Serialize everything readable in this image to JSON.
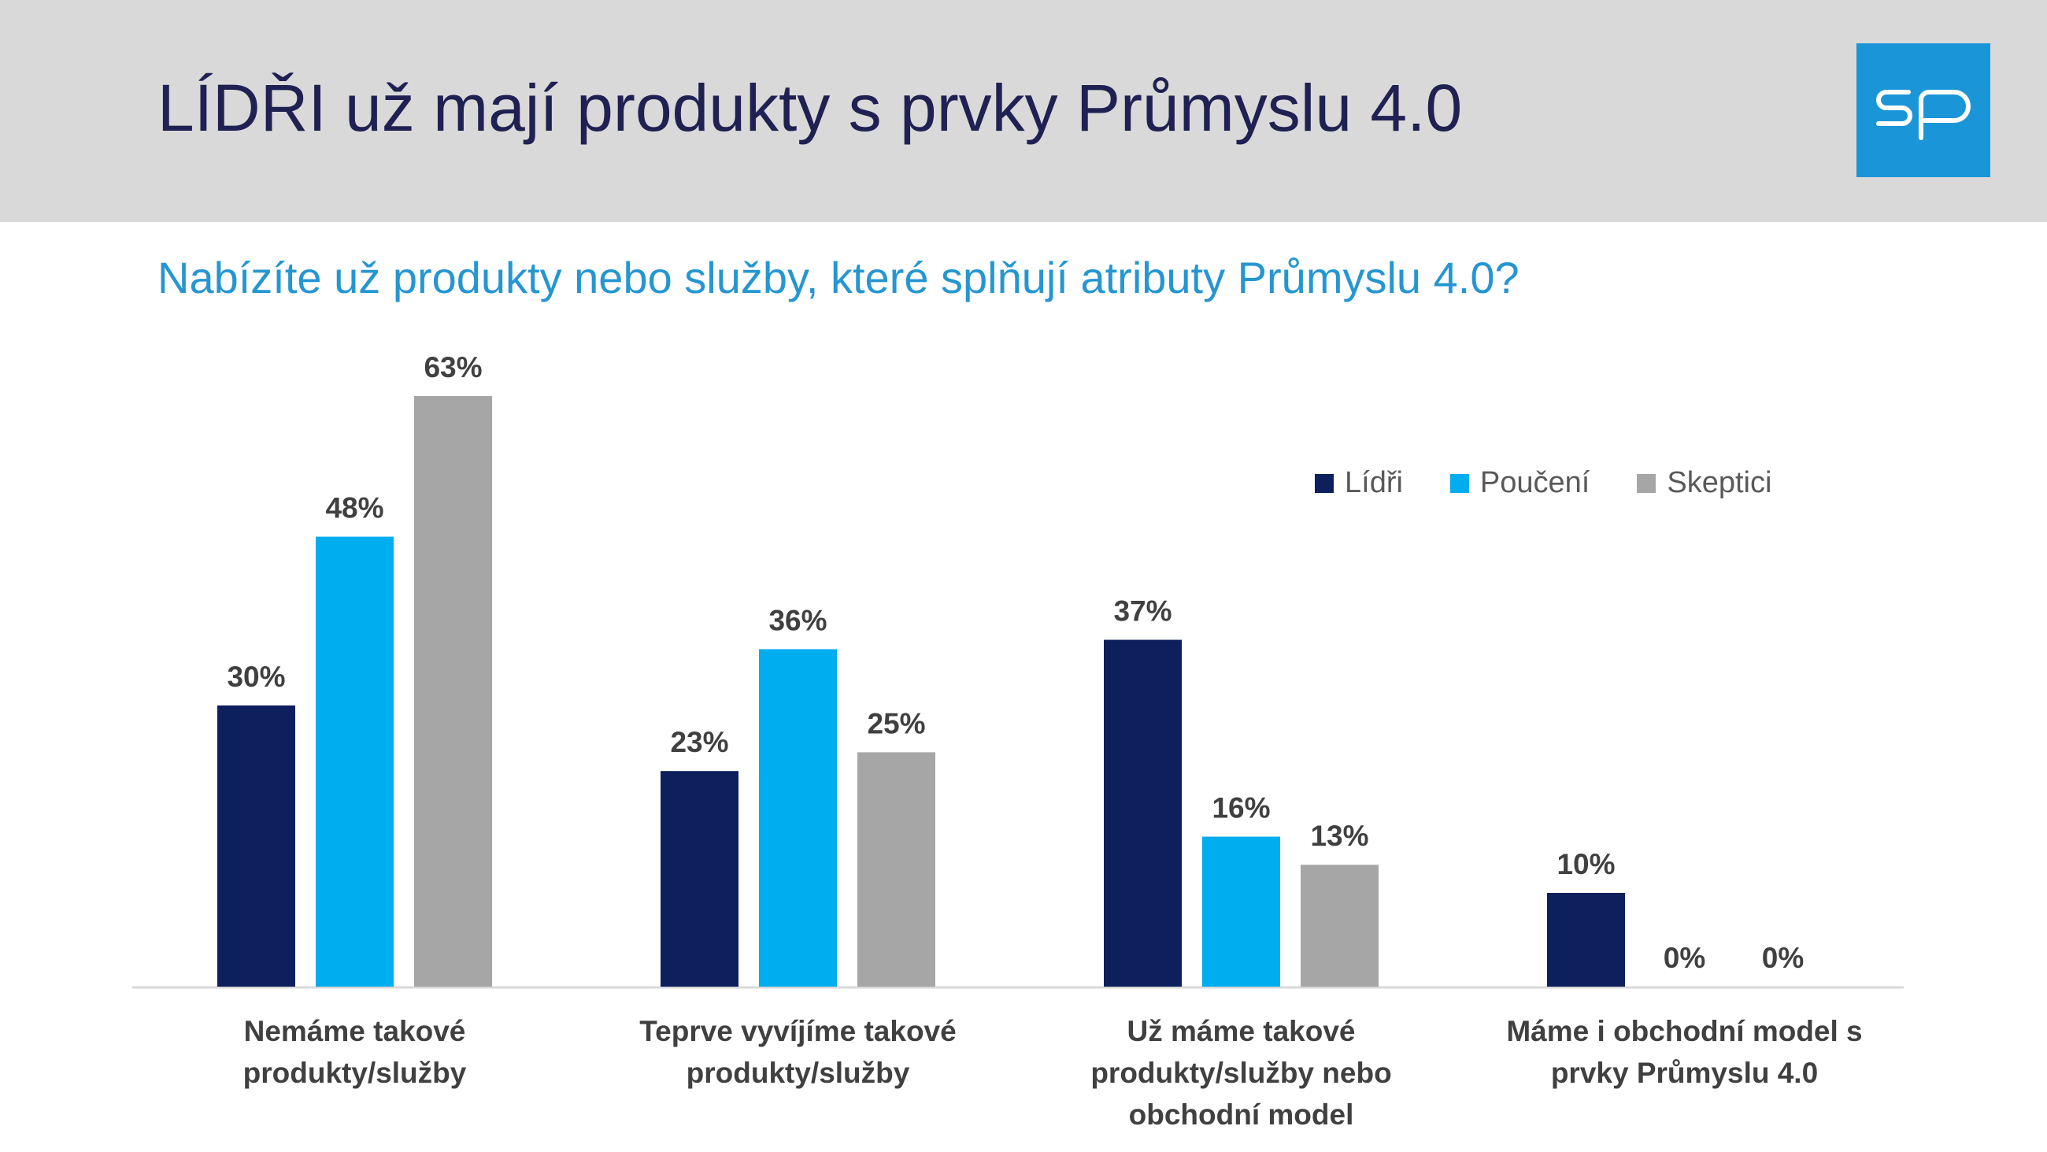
{
  "header": {
    "title": "LÍDŘI už mají produkty s prvky Průmyslu 4.0",
    "logo_text": "sp",
    "logo_color": "#1a96d8"
  },
  "chart_data": {
    "type": "bar",
    "title": "Nabízíte už produkty nebo služby, které splňují atributy Průmyslu 4.0?",
    "categories": [
      "Nemáme takové produkty/služby",
      "Teprve vyvíjíme takové produkty/služby",
      "Už máme takové produkty/služby nebo obchodní model",
      "Máme i obchodní model s prvky Průmyslu 4.0"
    ],
    "category_lines": [
      [
        "Nemáme takové",
        "produkty/služby"
      ],
      [
        "Teprve vyvíjíme takové",
        "produkty/služby"
      ],
      [
        "Už máme takové",
        "produkty/služby nebo",
        "obchodní model"
      ],
      [
        "Máme i obchodní model s",
        "prvky Průmyslu 4.0"
      ]
    ],
    "series": [
      {
        "name": "Lídři",
        "color": "#0d1f5c",
        "values": [
          30,
          23,
          37,
          10
        ],
        "labels": [
          "30%",
          "23%",
          "37%",
          "10%"
        ]
      },
      {
        "name": "Poučení",
        "color": "#00adef",
        "values": [
          48,
          36,
          16,
          0
        ],
        "labels": [
          "48%",
          "36%",
          "16%",
          "0%"
        ]
      },
      {
        "name": "Skeptici",
        "color": "#a6a6a6",
        "values": [
          63,
          25,
          13,
          0
        ],
        "labels": [
          "63%",
          "25%",
          "13%",
          "0%"
        ]
      }
    ],
    "ylim": [
      0,
      63
    ],
    "legend_position": "top-right",
    "grid": false
  }
}
